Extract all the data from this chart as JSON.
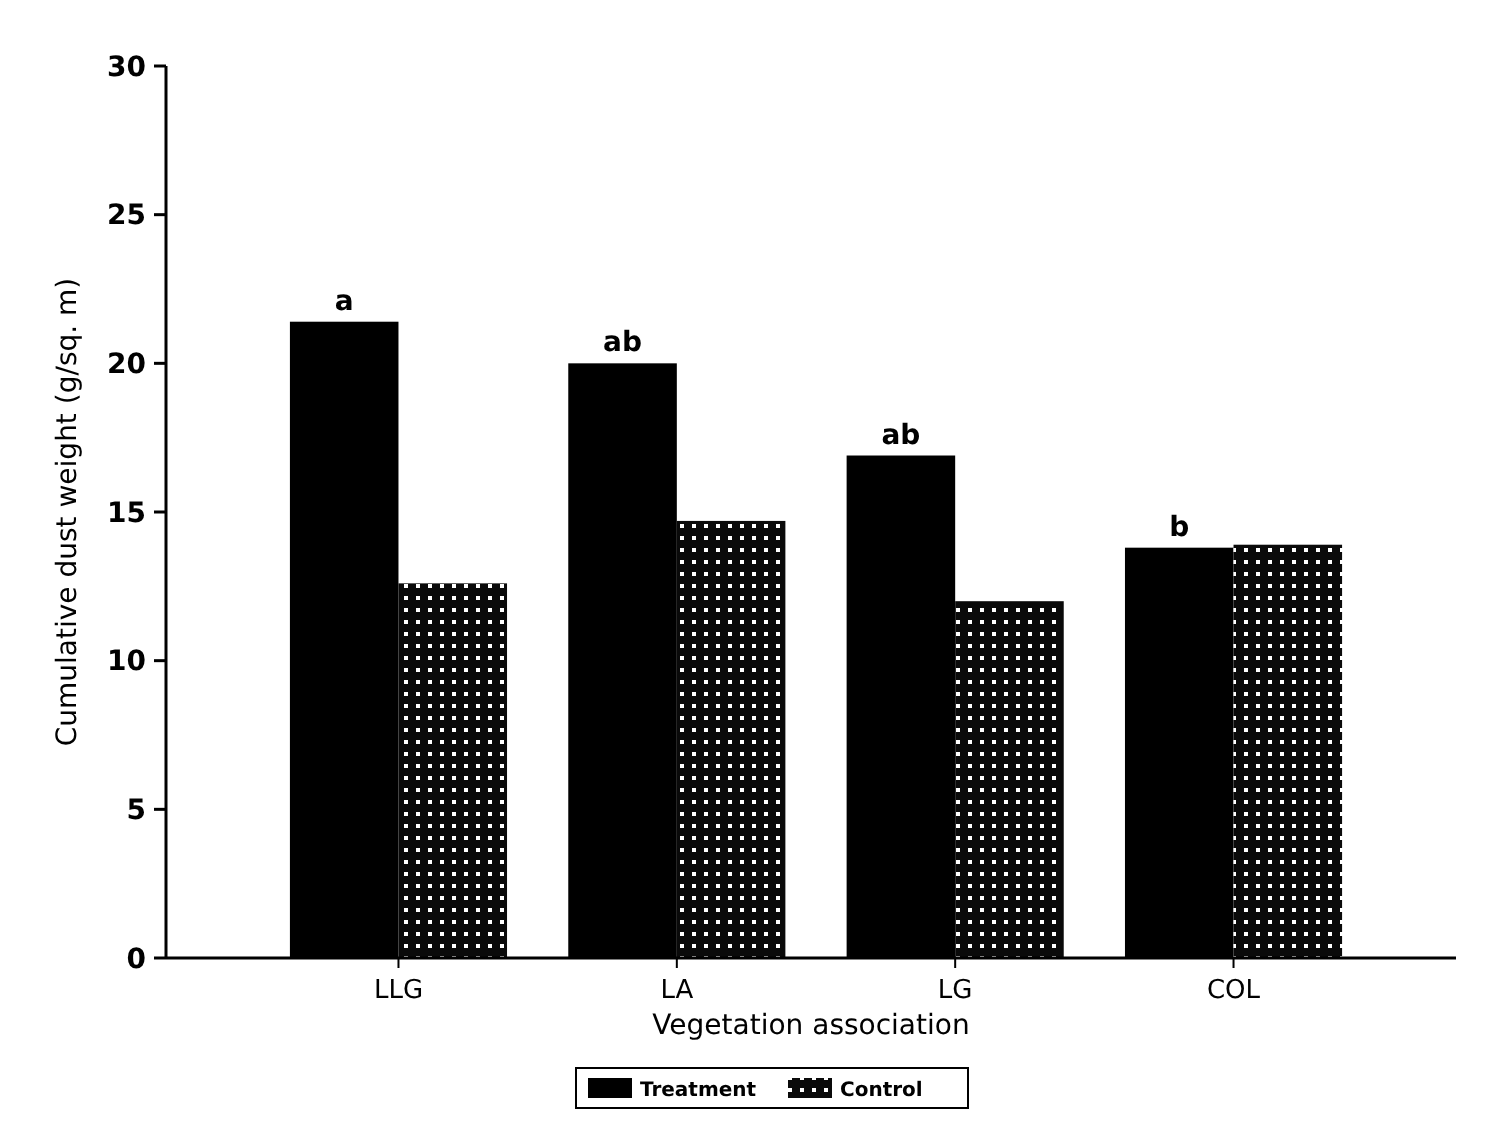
{
  "chart_data": {
    "type": "bar",
    "xlabel": "Vegetation association",
    "ylabel": "Cumulative dust weight (g/sq. m)",
    "categories": [
      "LLG",
      "LA",
      "LG",
      "COL"
    ],
    "series": [
      {
        "name": "Treatment",
        "color": "#000000",
        "values": [
          21.4,
          20.0,
          16.9,
          13.8
        ]
      },
      {
        "name": "Control",
        "color": "#0a0a0a",
        "values": [
          12.6,
          14.7,
          12.0,
          13.9
        ]
      }
    ],
    "ylim": [
      0,
      30
    ],
    "yticks": [
      0,
      5,
      10,
      15,
      20,
      25,
      30
    ],
    "grid": false,
    "legend": "bottom",
    "annotations": [
      {
        "text": "a",
        "x": "LLG",
        "y": 21.4
      },
      {
        "text": "ab",
        "x": "LA",
        "y": 20.0
      },
      {
        "text": "ab",
        "x": "LG",
        "y": 16.9
      },
      {
        "text": "b",
        "x": "COL",
        "y": 13.8
      }
    ]
  }
}
